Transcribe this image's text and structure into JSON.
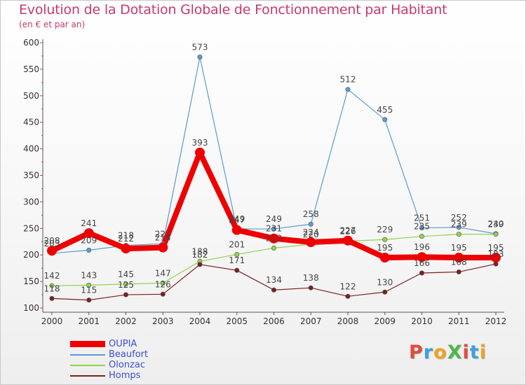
{
  "title": "Evolution de la Dotation Globale de Fonctionnement par Habitant",
  "subtitle": "(en € et par an)",
  "logo": {
    "text": "ProXiti",
    "colors": [
      "#e24b3b",
      "#3aa3e0",
      "#f0a020",
      "#4cb84c",
      "#e24b3b",
      "#3aa3e0",
      "#f0a020"
    ]
  },
  "chart_data": {
    "type": "line",
    "x": [
      "2000",
      "2001",
      "2002",
      "2003",
      "2004",
      "2005",
      "2006",
      "2007",
      "2008",
      "2009",
      "2010",
      "2011",
      "2012"
    ],
    "ylim": [
      100,
      600
    ],
    "yticks": [
      100,
      150,
      200,
      250,
      300,
      350,
      400,
      450,
      500,
      550,
      600
    ],
    "grid": false,
    "legend_position": "bottom-left",
    "series": [
      {
        "name": "Beaufort",
        "color": "#5a9bd4",
        "values": [
          203,
          209,
          218,
          221,
          573,
          249,
          249,
          258,
          512,
          455,
          251,
          252,
          240
        ]
      },
      {
        "name": "Olonzac",
        "color": "#8fd44a",
        "values": [
          142,
          143,
          145,
          147,
          188,
          201,
          213,
          220,
          226,
          229,
          235,
          239,
          239
        ]
      },
      {
        "name": "Homps",
        "color": "#7a1f1f",
        "values": [
          118,
          115,
          125,
          126,
          182,
          171,
          134,
          138,
          122,
          130,
          166,
          168,
          183
        ]
      },
      {
        "name": "OUPIA",
        "color": "#ee0000",
        "values": [
          208,
          241,
          212,
          214,
          393,
          247,
          231,
          224,
          227,
          195,
          196,
          195,
          195
        ]
      }
    ],
    "legend": [
      {
        "name": "OUPIA",
        "color": "#ee0000",
        "thick": true
      },
      {
        "name": "Beaufort",
        "color": "#5a9bd4",
        "thick": false
      },
      {
        "name": "Olonzac",
        "color": "#8fd44a",
        "thick": false
      },
      {
        "name": "Homps",
        "color": "#7a1f1f",
        "thick": false
      }
    ]
  }
}
